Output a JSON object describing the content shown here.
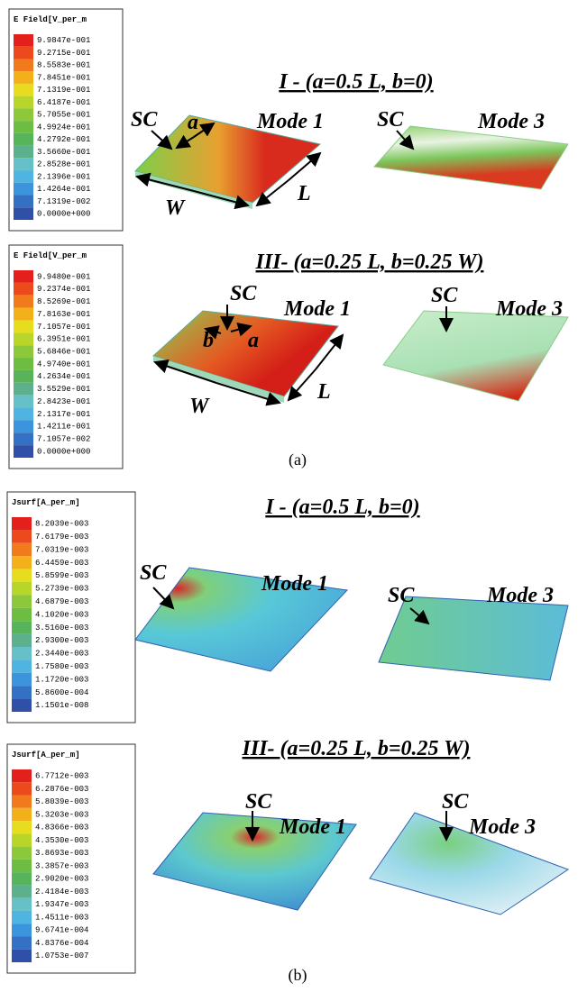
{
  "panels": [
    {
      "legend": {
        "title": "E Field[V_per_m",
        "values": [
          "9.9847e-001",
          "9.2715e-001",
          "8.5583e-001",
          "7.8451e-001",
          "7.1319e-001",
          "6.4187e-001",
          "5.7055e-001",
          "4.9924e-001",
          "4.2792e-001",
          "3.5660e-001",
          "2.8528e-001",
          "2.1396e-001",
          "1.4264e-001",
          "7.1319e-002",
          "0.0000e+000"
        ]
      },
      "heading": "I - (a=0.5 L, b=0)",
      "plots": [
        {
          "sc": "SC",
          "mode": "Mode 1",
          "a": "a",
          "W": "W",
          "L": "L"
        },
        {
          "sc": "SC",
          "mode": "Mode 3"
        }
      ]
    },
    {
      "legend": {
        "title": "E Field[V_per_m",
        "values": [
          "9.9480e-001",
          "9.2374e-001",
          "8.5269e-001",
          "7.8163e-001",
          "7.1057e-001",
          "6.3951e-001",
          "5.6846e-001",
          "4.9740e-001",
          "4.2634e-001",
          "3.5529e-001",
          "2.8423e-001",
          "2.1317e-001",
          "1.4211e-001",
          "7.1057e-002",
          "0.0000e+000"
        ]
      },
      "heading": "III- (a=0.25 L, b=0.25 W)",
      "plots": [
        {
          "sc": "SC",
          "mode": "Mode 1",
          "a": "a",
          "b": "b",
          "W": "W",
          "L": "L"
        },
        {
          "sc": "SC",
          "mode": "Mode 3"
        }
      ]
    },
    {
      "legend": {
        "title": "Jsurf[A_per_m]",
        "values": [
          "8.2039e-003",
          "7.6179e-003",
          "7.0319e-003",
          "6.4459e-003",
          "5.8599e-003",
          "5.2739e-003",
          "4.6879e-003",
          "4.1020e-003",
          "3.5160e-003",
          "2.9300e-003",
          "2.3440e-003",
          "1.7580e-003",
          "1.1720e-003",
          "5.8600e-004",
          "1.1501e-008"
        ]
      },
      "heading": "I - (a=0.5 L, b=0)",
      "plots": [
        {
          "sc": "SC",
          "mode": "Mode 1"
        },
        {
          "sc": "SC",
          "mode": "Mode 3"
        }
      ]
    },
    {
      "legend": {
        "title": "Jsurf[A_per_m]",
        "values": [
          "6.7712e-003",
          "6.2876e-003",
          "5.8039e-003",
          "5.3203e-003",
          "4.8366e-003",
          "4.3530e-003",
          "3.8693e-003",
          "3.3857e-003",
          "2.9020e-003",
          "2.4184e-003",
          "1.9347e-003",
          "1.4511e-003",
          "9.6741e-004",
          "4.8376e-004",
          "1.0753e-007"
        ]
      },
      "heading": "III- (a=0.25 L, b=0.25 W)",
      "plots": [
        {
          "sc": "SC",
          "mode": "Mode 1"
        },
        {
          "sc": "SC",
          "mode": "Mode 3"
        }
      ]
    }
  ],
  "captions": [
    "(a)",
    "(b)"
  ]
}
